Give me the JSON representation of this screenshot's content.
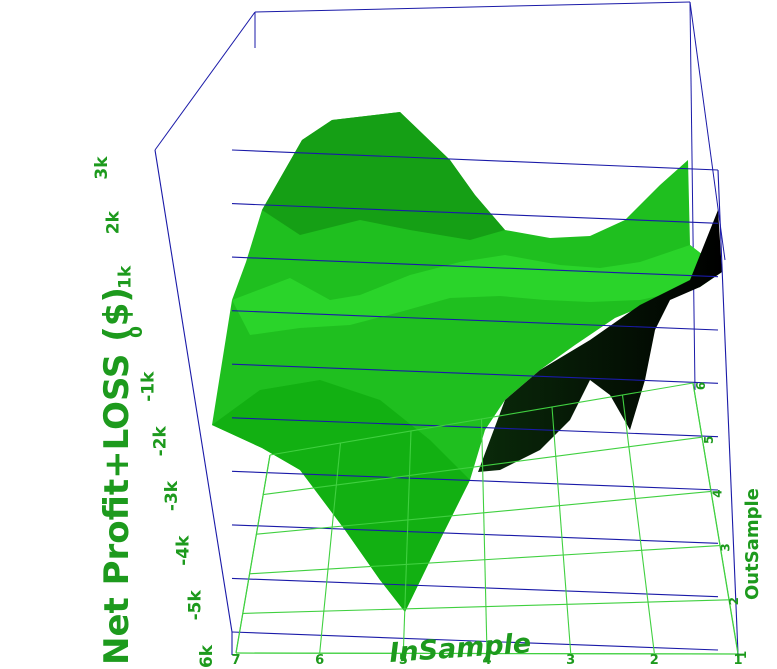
{
  "chart_data": {
    "type": "surface3d",
    "zlabel": "Net Profit+LOSS ($)",
    "xlabel": "InSample",
    "ylabel": "OutSample",
    "zlim": [
      -6000,
      4000
    ],
    "z_ticks": [
      "-6k",
      "-5k",
      "-4k",
      "-3k",
      "-2k",
      "-1k",
      "0",
      "1k",
      "2k",
      "3k"
    ],
    "x_ticks": [
      "1",
      "2",
      "3",
      "4",
      "5",
      "6",
      "7"
    ],
    "y_ticks": [
      "1",
      "2",
      "3",
      "4",
      "5",
      "6"
    ],
    "grid": true,
    "colors": {
      "grid_wall": "#1a1aa8",
      "grid_floor": "#40d040",
      "surface": "#22c422",
      "label": "#1d9a1d"
    }
  }
}
